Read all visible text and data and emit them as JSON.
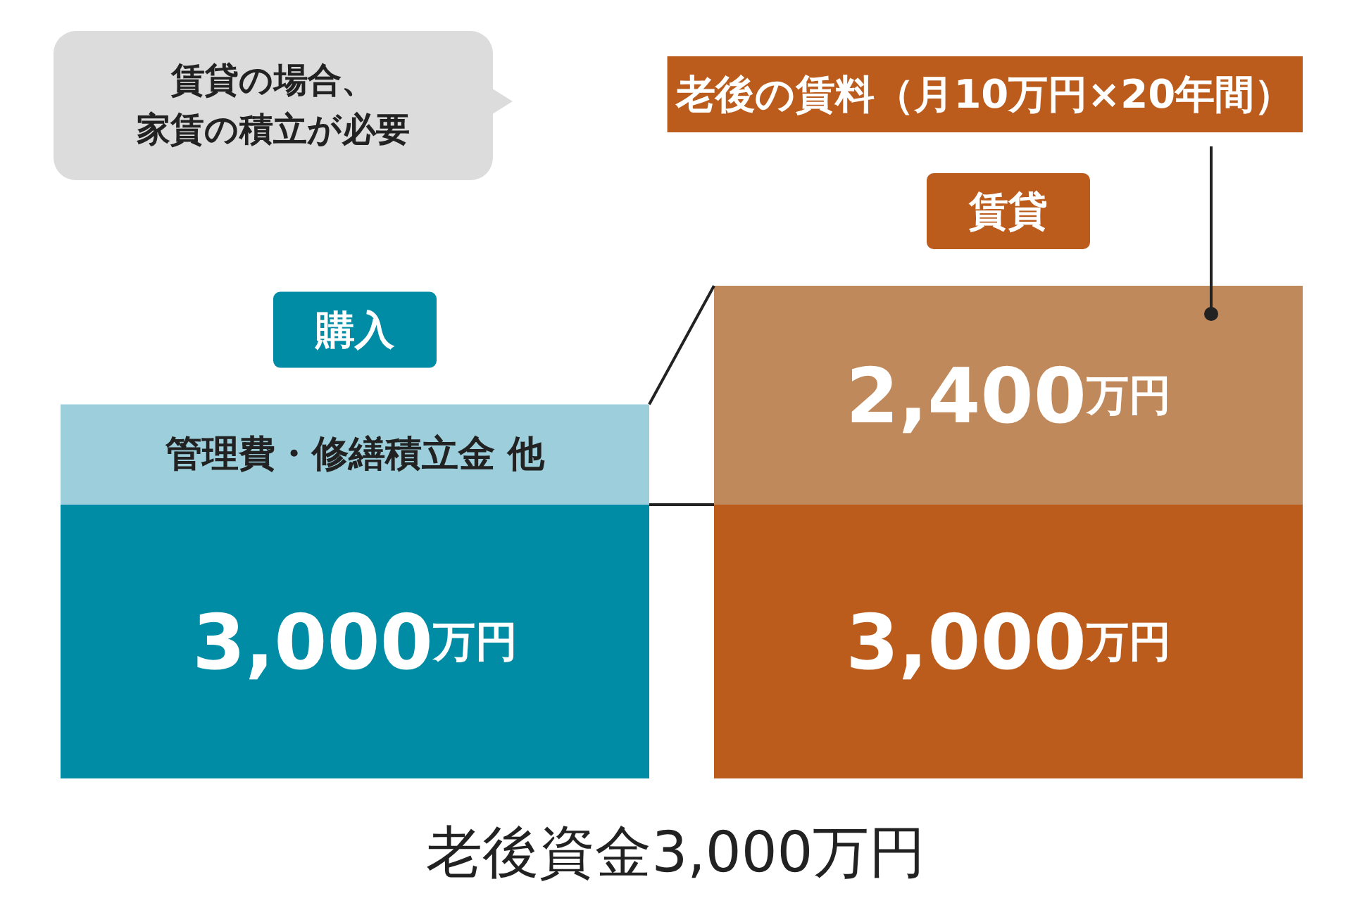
{
  "chart_data": {
    "type": "bar",
    "stacked": true,
    "xlabel": "老後資金3,000万円",
    "annotations": [
      "賃貸の場合、",
      "家賃の積立が必要"
    ],
    "categories": [
      "購入",
      "賃貸"
    ],
    "series": [
      {
        "colors": [
          "#008ca4",
          "#bb5b1c"
        ],
        "values": [
          3000,
          3000
        ],
        "value_labels": [
          "3,000万円",
          "3,000万円"
        ]
      },
      {
        "name": "管理費・修繕積立金 他",
        "color": "#9ccfdb",
        "values": [
          1100,
          null
        ]
      },
      {
        "name": "老後の賃料（月10万円×20年間）",
        "color": "#c0895b",
        "values": [
          null,
          2400
        ],
        "value_labels": [
          null,
          "2,400万円"
        ]
      }
    ]
  }
}
